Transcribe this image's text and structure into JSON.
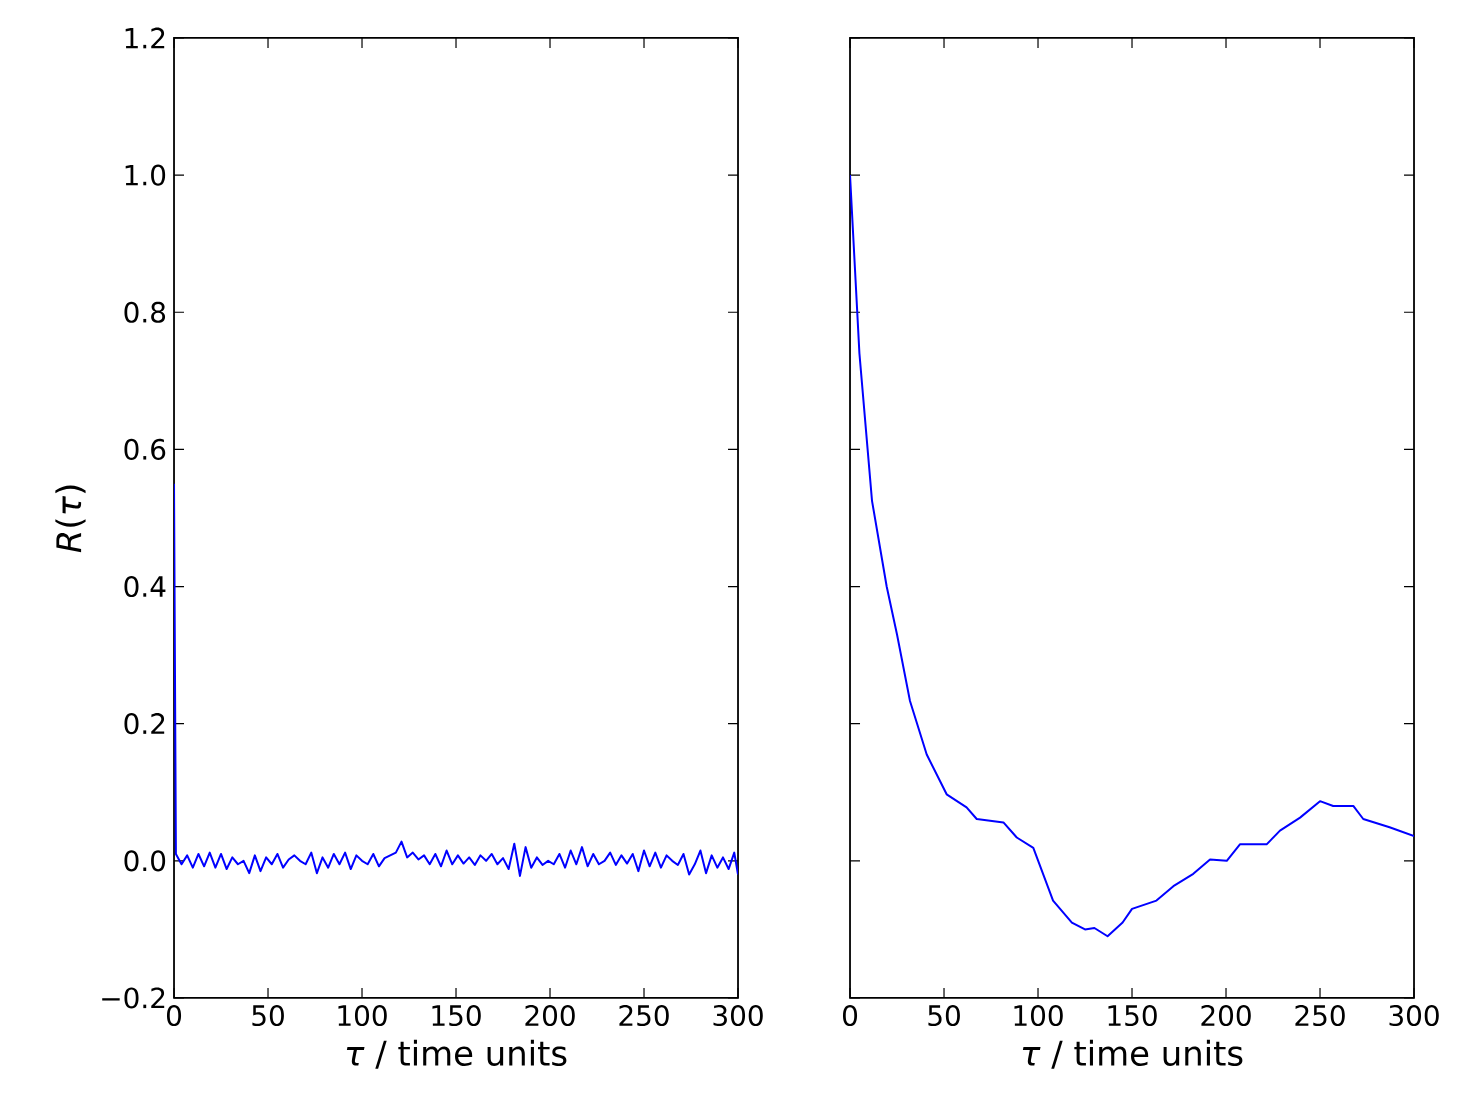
{
  "chart_data": [
    {
      "type": "line",
      "xlabel": "*τ* / time units",
      "ylabel": "*R*(*τ*)",
      "color": "#0000ff",
      "marker": "none",
      "line_style": "solid",
      "x": [
        0,
        1,
        4,
        7,
        10,
        13,
        16,
        19,
        22,
        25,
        28,
        31,
        34,
        37,
        40,
        43,
        46,
        49,
        52,
        55,
        58,
        61,
        64,
        67,
        70,
        73,
        76,
        79,
        82,
        85,
        88,
        91,
        94,
        97,
        100,
        103,
        106,
        109,
        112,
        115,
        118,
        121,
        124,
        127,
        130,
        133,
        136,
        139,
        142,
        145,
        148,
        151,
        154,
        157,
        160,
        163,
        166,
        169,
        172,
        175,
        178,
        181,
        184,
        187,
        190,
        193,
        196,
        199,
        202,
        205,
        208,
        211,
        214,
        217,
        220,
        223,
        226,
        229,
        232,
        235,
        238,
        241,
        244,
        247,
        250,
        253,
        256,
        259,
        262,
        265,
        268,
        271,
        274,
        277,
        280,
        283,
        286,
        289,
        292,
        295,
        298,
        300
      ],
      "values": [
        0.55,
        0.01,
        -0.005,
        0.008,
        -0.01,
        0.01,
        -0.008,
        0.012,
        -0.01,
        0.01,
        -0.012,
        0.005,
        -0.005,
        0.0,
        -0.018,
        0.008,
        -0.015,
        0.005,
        -0.005,
        0.01,
        -0.01,
        0.002,
        0.008,
        0.0,
        -0.005,
        0.012,
        -0.018,
        0.005,
        -0.01,
        0.01,
        -0.005,
        0.012,
        -0.012,
        0.008,
        0.0,
        -0.005,
        0.01,
        -0.008,
        0.004,
        0.008,
        0.012,
        0.028,
        0.005,
        0.012,
        0.002,
        0.008,
        -0.005,
        0.01,
        -0.008,
        0.015,
        -0.005,
        0.008,
        -0.004,
        0.005,
        -0.006,
        0.008,
        0.0,
        0.01,
        -0.005,
        0.004,
        -0.012,
        0.025,
        -0.022,
        0.02,
        -0.01,
        0.005,
        -0.006,
        0.0,
        -0.005,
        0.01,
        -0.01,
        0.015,
        -0.005,
        0.02,
        -0.008,
        0.01,
        -0.005,
        0.0,
        0.012,
        -0.006,
        0.008,
        -0.004,
        0.01,
        -0.015,
        0.015,
        -0.008,
        0.012,
        -0.01,
        0.008,
        0.0,
        -0.006,
        0.01,
        -0.02,
        -0.005,
        0.015,
        -0.018,
        0.008,
        -0.01,
        0.005,
        -0.012,
        0.012,
        -0.02
      ],
      "xlim": [
        0,
        300
      ],
      "ylim": [
        -0.2,
        1.2
      ],
      "xticks": [
        0,
        50,
        100,
        150,
        200,
        250,
        300
      ],
      "yticks": [
        {
          "value": -0.2,
          "label": "−0.2"
        },
        {
          "value": 0.0,
          "label": "0.0"
        },
        {
          "value": 0.2,
          "label": "0.2"
        },
        {
          "value": 0.4,
          "label": "0.4"
        },
        {
          "value": 0.6,
          "label": "0.6"
        },
        {
          "value": 0.8,
          "label": "0.8"
        },
        {
          "value": 1.0,
          "label": "1.0"
        },
        {
          "value": 1.2,
          "label": "1.2"
        }
      ]
    },
    {
      "type": "line",
      "xlabel": "*τ* / time units",
      "color": "#0000ff",
      "marker": "none",
      "line_style": "solid",
      "x": [
        0,
        5,
        11.7,
        19.5,
        25,
        31.9,
        40.8,
        51.4,
        62,
        67.4,
        81.6,
        88.7,
        97.5,
        108,
        118,
        125,
        130,
        137,
        145,
        150,
        163,
        172,
        182.6,
        191.5,
        200.4,
        207.4,
        221.6,
        228.7,
        239.4,
        250,
        257,
        267.7,
        273,
        287,
        300
      ],
      "values": [
        1.0,
        0.74,
        0.525,
        0.4,
        0.33,
        0.233,
        0.155,
        0.097,
        0.078,
        0.061,
        0.056,
        0.034,
        0.019,
        -0.058,
        -0.09,
        -0.1,
        -0.098,
        -0.11,
        -0.09,
        -0.07,
        -0.058,
        -0.037,
        -0.019,
        0.002,
        0.0,
        0.024,
        0.024,
        0.044,
        0.063,
        0.087,
        0.08,
        0.08,
        0.061,
        0.049,
        0.036
      ],
      "xlim": [
        0,
        300
      ],
      "ylim": [
        -0.2,
        1.2
      ],
      "xticks": [
        0,
        50,
        100,
        150,
        200,
        250,
        300
      ],
      "yticks": [
        -0.2,
        0.0,
        0.2,
        0.4,
        0.6,
        0.8,
        1.0,
        1.2
      ],
      "tick_labels": "x"
    }
  ]
}
